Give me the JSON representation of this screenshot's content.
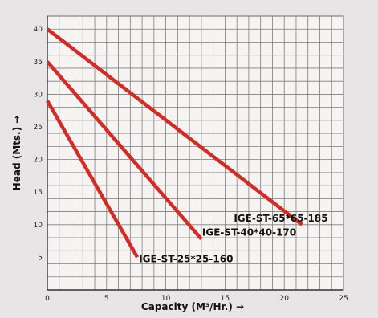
{
  "chart_data": {
    "type": "line",
    "title": "",
    "xlabel": "Capacity (M³/Hr.) →",
    "ylabel": "Head (Mts.) →",
    "xlim": [
      0,
      25
    ],
    "ylim": [
      0,
      42
    ],
    "x_ticks": [
      0,
      5,
      10,
      15,
      20,
      25
    ],
    "y_ticks": [
      5,
      10,
      15,
      20,
      25,
      30,
      35,
      40
    ],
    "grid": true,
    "line_color": "#d42b25",
    "series": [
      {
        "name": "IGE-ST-65*65-185",
        "x": [
          0,
          21.5
        ],
        "y": [
          40,
          10
        ]
      },
      {
        "name": "IGE-ST-40*40-170",
        "x": [
          0,
          13
        ],
        "y": [
          35,
          7.8
        ]
      },
      {
        "name": "IGE-ST-25*25-160",
        "x": [
          0,
          7.6
        ],
        "y": [
          29,
          5
        ]
      }
    ]
  }
}
